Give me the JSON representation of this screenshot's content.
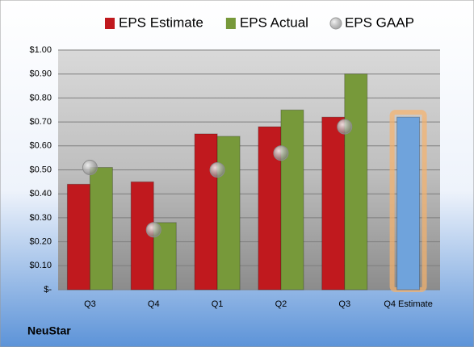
{
  "chart_data": {
    "type": "bar",
    "categories": [
      "Q3",
      "Q4",
      "Q1",
      "Q2",
      "Q3",
      "Q4 Estimate"
    ],
    "series": [
      {
        "name": "EPS Estimate",
        "color": "#c0191e",
        "values": [
          0.44,
          0.45,
          0.65,
          0.68,
          0.72,
          0.72
        ],
        "point_colors": [
          "#c0191e",
          "#c0191e",
          "#c0191e",
          "#c0191e",
          "#c0191e",
          "#6fa3dc"
        ]
      },
      {
        "name": "EPS Actual",
        "color": "#77993a",
        "values": [
          0.51,
          0.28,
          0.64,
          0.75,
          0.9,
          null
        ]
      },
      {
        "name": "EPS GAAP",
        "color": "#a6a6a6",
        "marker": "circle",
        "values": [
          0.51,
          0.25,
          0.5,
          0.57,
          0.68,
          null
        ]
      }
    ],
    "ylim": [
      0,
      1
    ],
    "yticks": [
      {
        "value": 0,
        "label": "$-"
      },
      {
        "value": 0.1,
        "label": "$0.10"
      },
      {
        "value": 0.2,
        "label": "$0.20"
      },
      {
        "value": 0.3,
        "label": "$0.30"
      },
      {
        "value": 0.4,
        "label": "$0.40"
      },
      {
        "value": 0.5,
        "label": "$0.50"
      },
      {
        "value": 0.6,
        "label": "$0.60"
      },
      {
        "value": 0.7,
        "label": "$0.70"
      },
      {
        "value": 0.8,
        "label": "$0.80"
      },
      {
        "value": 0.9,
        "label": "$0.90"
      },
      {
        "value": 1,
        "label": "$1.00"
      }
    ],
    "grid": true,
    "legend": "top",
    "caption": "NeuStar"
  }
}
